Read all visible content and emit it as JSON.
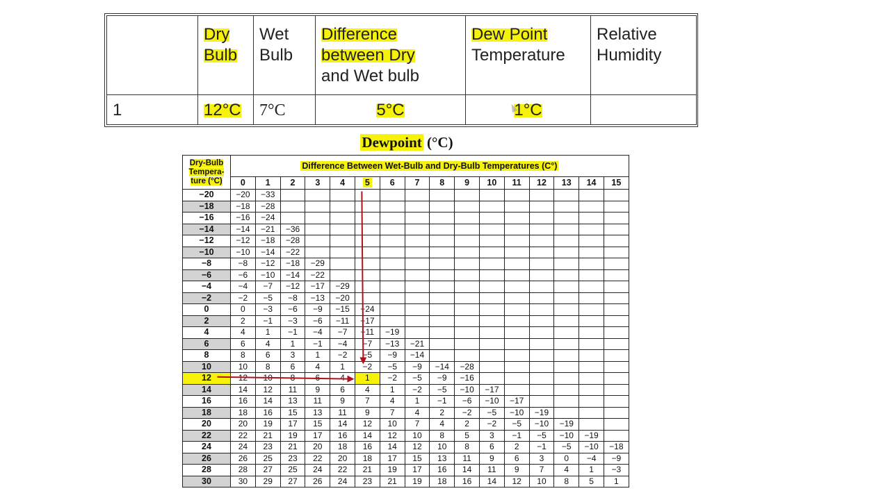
{
  "summary_table": {
    "headers": [
      "",
      "Dry Bulb",
      "Wet Bulb",
      "Difference between Dry and Wet bulb",
      "Dew Point Temperature",
      "Relative Humidity"
    ],
    "header_parts": {
      "dry_line1": "Dry",
      "dry_line2": "Bulb",
      "wet_line1": "Wet",
      "wet_line2": "Bulb",
      "diff_hl": "Difference between Dry",
      "diff_rest": "and Wet bulb",
      "dew_hl": "Dew Point",
      "dew_rest": "Temperature",
      "rh_line1": "Relative",
      "rh_line2": "Humidity"
    },
    "row": {
      "index": "1",
      "dry_bulb": "12°C",
      "wet_bulb": "7°C",
      "difference": "5°C",
      "dew_point": "1°C",
      "relative_humidity": ""
    }
  },
  "dewpoint_chart": {
    "title_word": "Dewpoint",
    "title_unit": "(°C)",
    "dry_bulb_header": [
      "Dry-Bulb",
      "Tempera-",
      "ture (°C)"
    ],
    "difference_header": "Difference Between Wet-Bulb and Dry-Bulb Temperatures (C°)",
    "columns": [
      "0",
      "1",
      "2",
      "3",
      "4",
      "5",
      "6",
      "7",
      "8",
      "9",
      "10",
      "11",
      "12",
      "13",
      "14",
      "15"
    ],
    "highlight_column": "5",
    "highlight_row": "12",
    "highlight_value": "1",
    "rows": [
      {
        "dry": "−20",
        "values": [
          "−20",
          "−33",
          "",
          "",
          "",
          "",
          "",
          "",
          "",
          "",
          "",
          "",
          "",
          "",
          "",
          ""
        ]
      },
      {
        "dry": "−18",
        "values": [
          "−18",
          "−28",
          "",
          "",
          "",
          "",
          "",
          "",
          "",
          "",
          "",
          "",
          "",
          "",
          "",
          ""
        ]
      },
      {
        "dry": "−16",
        "values": [
          "−16",
          "−24",
          "",
          "",
          "",
          "",
          "",
          "",
          "",
          "",
          "",
          "",
          "",
          "",
          "",
          ""
        ]
      },
      {
        "dry": "−14",
        "values": [
          "−14",
          "−21",
          "−36",
          "",
          "",
          "",
          "",
          "",
          "",
          "",
          "",
          "",
          "",
          "",
          "",
          ""
        ]
      },
      {
        "dry": "−12",
        "values": [
          "−12",
          "−18",
          "−28",
          "",
          "",
          "",
          "",
          "",
          "",
          "",
          "",
          "",
          "",
          "",
          "",
          ""
        ]
      },
      {
        "dry": "−10",
        "values": [
          "−10",
          "−14",
          "−22",
          "",
          "",
          "",
          "",
          "",
          "",
          "",
          "",
          "",
          "",
          "",
          "",
          ""
        ]
      },
      {
        "dry": "−8",
        "values": [
          "−8",
          "−12",
          "−18",
          "−29",
          "",
          "",
          "",
          "",
          "",
          "",
          "",
          "",
          "",
          "",
          "",
          ""
        ]
      },
      {
        "dry": "−6",
        "values": [
          "−6",
          "−10",
          "−14",
          "−22",
          "",
          "",
          "",
          "",
          "",
          "",
          "",
          "",
          "",
          "",
          "",
          ""
        ]
      },
      {
        "dry": "−4",
        "values": [
          "−4",
          "−7",
          "−12",
          "−17",
          "−29",
          "",
          "",
          "",
          "",
          "",
          "",
          "",
          "",
          "",
          "",
          ""
        ]
      },
      {
        "dry": "−2",
        "values": [
          "−2",
          "−5",
          "−8",
          "−13",
          "−20",
          "",
          "",
          "",
          "",
          "",
          "",
          "",
          "",
          "",
          "",
          ""
        ]
      },
      {
        "dry": "0",
        "values": [
          "0",
          "−3",
          "−6",
          "−9",
          "−15",
          "−24",
          "",
          "",
          "",
          "",
          "",
          "",
          "",
          "",
          "",
          ""
        ]
      },
      {
        "dry": "2",
        "values": [
          "2",
          "−1",
          "−3",
          "−6",
          "−11",
          "−17",
          "",
          "",
          "",
          "",
          "",
          "",
          "",
          "",
          "",
          ""
        ]
      },
      {
        "dry": "4",
        "values": [
          "4",
          "1",
          "−1",
          "−4",
          "−7",
          "−11",
          "−19",
          "",
          "",
          "",
          "",
          "",
          "",
          "",
          "",
          ""
        ]
      },
      {
        "dry": "6",
        "values": [
          "6",
          "4",
          "1",
          "−1",
          "−4",
          "−7",
          "−13",
          "−21",
          "",
          "",
          "",
          "",
          "",
          "",
          "",
          ""
        ]
      },
      {
        "dry": "8",
        "values": [
          "8",
          "6",
          "3",
          "1",
          "−2",
          "−5",
          "−9",
          "−14",
          "",
          "",
          "",
          "",
          "",
          "",
          "",
          ""
        ]
      },
      {
        "dry": "10",
        "values": [
          "10",
          "8",
          "6",
          "4",
          "1",
          "−2",
          "−5",
          "−9",
          "−14",
          "−28",
          "",
          "",
          "",
          "",
          "",
          ""
        ]
      },
      {
        "dry": "12",
        "values": [
          "12",
          "10",
          "8",
          "6",
          "4",
          "1",
          "−2",
          "−5",
          "−9",
          "−16",
          "",
          "",
          "",
          "",
          "",
          ""
        ]
      },
      {
        "dry": "14",
        "values": [
          "14",
          "12",
          "11",
          "9",
          "6",
          "4",
          "1",
          "−2",
          "−5",
          "−10",
          "−17",
          "",
          "",
          "",
          "",
          ""
        ]
      },
      {
        "dry": "16",
        "values": [
          "16",
          "14",
          "13",
          "11",
          "9",
          "7",
          "4",
          "1",
          "−1",
          "−6",
          "−10",
          "−17",
          "",
          "",
          "",
          ""
        ]
      },
      {
        "dry": "18",
        "values": [
          "18",
          "16",
          "15",
          "13",
          "11",
          "9",
          "7",
          "4",
          "2",
          "−2",
          "−5",
          "−10",
          "−19",
          "",
          "",
          ""
        ]
      },
      {
        "dry": "20",
        "values": [
          "20",
          "19",
          "17",
          "15",
          "14",
          "12",
          "10",
          "7",
          "4",
          "2",
          "−2",
          "−5",
          "−10",
          "−19",
          "",
          ""
        ]
      },
      {
        "dry": "22",
        "values": [
          "22",
          "21",
          "19",
          "17",
          "16",
          "14",
          "12",
          "10",
          "8",
          "5",
          "3",
          "−1",
          "−5",
          "−10",
          "−19",
          ""
        ]
      },
      {
        "dry": "24",
        "values": [
          "24",
          "23",
          "21",
          "20",
          "18",
          "16",
          "14",
          "12",
          "10",
          "8",
          "6",
          "2",
          "−1",
          "−5",
          "−10",
          "−18"
        ]
      },
      {
        "dry": "26",
        "values": [
          "26",
          "25",
          "23",
          "22",
          "20",
          "18",
          "17",
          "15",
          "13",
          "11",
          "9",
          "6",
          "3",
          "0",
          "−4",
          "−9"
        ]
      },
      {
        "dry": "28",
        "values": [
          "28",
          "27",
          "25",
          "24",
          "22",
          "21",
          "19",
          "17",
          "16",
          "14",
          "11",
          "9",
          "7",
          "4",
          "1",
          "−3"
        ]
      },
      {
        "dry": "30",
        "values": [
          "30",
          "29",
          "27",
          "26",
          "24",
          "23",
          "21",
          "19",
          "18",
          "16",
          "14",
          "12",
          "10",
          "8",
          "5",
          "1"
        ]
      }
    ],
    "colors": {
      "highlight": "#f6f20a",
      "arrow": "#b0121b",
      "shade": "#d3d3d3"
    }
  }
}
